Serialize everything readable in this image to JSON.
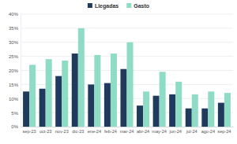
{
  "chart_data": {
    "type": "bar",
    "categories": [
      "sep-23",
      "oct-23",
      "nov-23",
      "dic-23",
      "ene-24",
      "feb-24",
      "mar-24",
      "abr-24",
      "may-24",
      "jun-24",
      "jul-24",
      "ago-24",
      "sep-24"
    ],
    "series": [
      {
        "name": "Llegadas",
        "color": "#1f3a5c",
        "values": [
          12.5,
          13.5,
          18,
          26,
          15,
          15.5,
          20.5,
          7.5,
          11,
          11.5,
          6.5,
          6.5,
          8.5
        ]
      },
      {
        "name": "Gasto",
        "color": "#8fdcc6",
        "values": [
          22,
          24,
          23.5,
          35,
          25.5,
          26,
          30,
          12.5,
          19.5,
          16,
          11.5,
          12.5,
          12
        ]
      }
    ],
    "ylim": [
      0,
      40
    ],
    "yticks": [
      {
        "value": 0,
        "label": "0%"
      },
      {
        "value": 5,
        "label": "5%"
      },
      {
        "value": 10,
        "label": "10%"
      },
      {
        "value": 15,
        "label": "15%"
      },
      {
        "value": 20,
        "label": "20%"
      },
      {
        "value": 25,
        "label": "25%"
      },
      {
        "value": 30,
        "label": "30%"
      },
      {
        "value": 35,
        "label": "35%"
      },
      {
        "value": 40,
        "label": "40%"
      }
    ],
    "grid": true,
    "legend": "top"
  }
}
